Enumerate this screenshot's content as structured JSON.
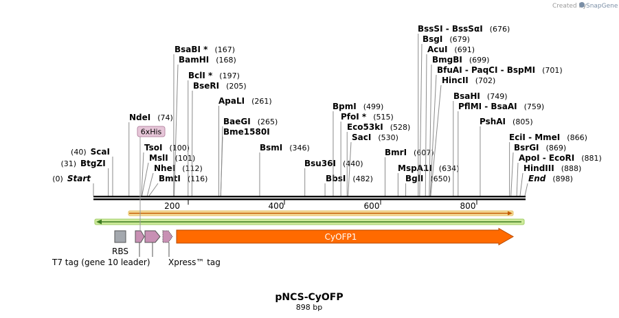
{
  "credit": {
    "prefix": "Created by",
    "brand": "SnapGene",
    "color": "#7b8fa6"
  },
  "plasmid": {
    "name": "pNCS-CyOFP",
    "length_label": "898 bp",
    "length": 898
  },
  "ruler": {
    "ticks": [
      200,
      400,
      600,
      800
    ]
  },
  "colors": {
    "orange_arrow": "#ff6a00",
    "orange_outline": "#b44a00",
    "pink_feature": "#c890b4",
    "rbs_gray": "#a4a8ae",
    "his_bg": "#e6c6d8",
    "his_border": "#b88aa6",
    "yellow_bar": "#f6dd9a",
    "green_bar": "#cfeb9c",
    "green_arrow": "#3b7a1f"
  },
  "sites": [
    {
      "name": "Start",
      "pos_label": "(0)",
      "bp": 0,
      "italic": true
    },
    {
      "name": "BtgZI",
      "pos_label": "(31)",
      "bp": 31
    },
    {
      "name": "ScaI",
      "pos_label": "(40)",
      "bp": 40
    },
    {
      "name": "NdeI",
      "pos_label": "(74)",
      "bp": 74
    },
    {
      "name": "TsoI",
      "pos_label": "(100)",
      "bp": 100
    },
    {
      "name": "MslI",
      "pos_label": "(101)",
      "bp": 101
    },
    {
      "name": "NheI",
      "pos_label": "(112)",
      "bp": 112
    },
    {
      "name": "BmtI",
      "pos_label": "(116)",
      "bp": 116
    },
    {
      "name": "BsaBI *",
      "pos_label": "(167)",
      "bp": 167
    },
    {
      "name": "BamHI",
      "pos_label": "(168)",
      "bp": 168
    },
    {
      "name": "BclI *",
      "pos_label": "(197)",
      "bp": 197
    },
    {
      "name": "BseRI",
      "pos_label": "(205)",
      "bp": 205
    },
    {
      "name": "ApaLI",
      "pos_label": "(261)",
      "bp": 261
    },
    {
      "name": "BaeGI",
      "pos_label": "(265)",
      "bp": 265
    },
    {
      "name": "Bme1580I",
      "pos_label": "",
      "bp": 265
    },
    {
      "name": "BsmI",
      "pos_label": "(346)",
      "bp": 346
    },
    {
      "name": "Bsu36I",
      "pos_label": "(440)",
      "bp": 440
    },
    {
      "name": "BbsI",
      "pos_label": "(482)",
      "bp": 482
    },
    {
      "name": "BpmI",
      "pos_label": "(499)",
      "bp": 499
    },
    {
      "name": "PfoI *",
      "pos_label": "(515)",
      "bp": 515
    },
    {
      "name": "Eco53kI",
      "pos_label": "(528)",
      "bp": 528
    },
    {
      "name": "SacI",
      "pos_label": "(530)",
      "bp": 530
    },
    {
      "name": "BmrI",
      "pos_label": "(607)",
      "bp": 607
    },
    {
      "name": "MspA1I",
      "pos_label": "(634)",
      "bp": 634
    },
    {
      "name": "BglI",
      "pos_label": "(650)",
      "bp": 650
    },
    {
      "name": "BssSI  -  BssSαI",
      "pos_label": "(676)",
      "bp": 676
    },
    {
      "name": "BsgI",
      "pos_label": "(679)",
      "bp": 679
    },
    {
      "name": "AcuI",
      "pos_label": "(691)",
      "bp": 691
    },
    {
      "name": "BmgBI",
      "pos_label": "(699)",
      "bp": 699
    },
    {
      "name": "BfuAI  -  PaqCI  -  BspMI",
      "pos_label": "(701)",
      "bp": 701
    },
    {
      "name": "HincII",
      "pos_label": "(702)",
      "bp": 702
    },
    {
      "name": "BsaHI",
      "pos_label": "(749)",
      "bp": 749
    },
    {
      "name": "PflMI  -  BsaAI",
      "pos_label": "(759)",
      "bp": 759
    },
    {
      "name": "PshAI",
      "pos_label": "(805)",
      "bp": 805
    },
    {
      "name": "EciI  -  MmeI",
      "pos_label": "(866)",
      "bp": 866
    },
    {
      "name": "BsrGI",
      "pos_label": "(869)",
      "bp": 869
    },
    {
      "name": "ApoI  -  EcoRI",
      "pos_label": "(881)",
      "bp": 881
    },
    {
      "name": "HindIII",
      "pos_label": "(888)",
      "bp": 888
    },
    {
      "name": "End",
      "pos_label": "(898)",
      "bp": 898,
      "italic": true
    }
  ],
  "features": {
    "his_tag": "6xHis",
    "orf": "CyOFP1",
    "rbs": "RBS",
    "t7_tag": "T7 tag (gene 10 leader)",
    "xpress_tag": "Xpress™ tag"
  }
}
